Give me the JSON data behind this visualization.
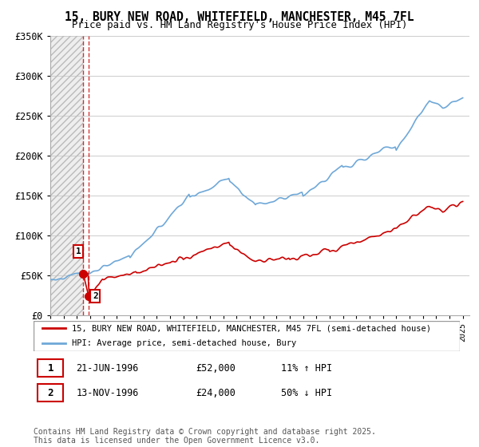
{
  "title": "15, BURY NEW ROAD, WHITEFIELD, MANCHESTER, M45 7FL",
  "subtitle": "Price paid vs. HM Land Registry's House Price Index (HPI)",
  "legend_entry1": "15, BURY NEW ROAD, WHITEFIELD, MANCHESTER, M45 7FL (semi-detached house)",
  "legend_entry2": "HPI: Average price, semi-detached house, Bury",
  "transaction1_label": "1",
  "transaction1_date": "21-JUN-1996",
  "transaction1_price": "£52,000",
  "transaction1_hpi": "11% ↑ HPI",
  "transaction2_label": "2",
  "transaction2_date": "13-NOV-1996",
  "transaction2_price": "£24,000",
  "transaction2_hpi": "50% ↓ HPI",
  "footnote": "Contains HM Land Registry data © Crown copyright and database right 2025.\nThis data is licensed under the Open Government Licence v3.0.",
  "hpi_color": "#6fa8d8",
  "price_color": "#cc0000",
  "ylim": [
    0,
    350000
  ],
  "yticks": [
    0,
    50000,
    100000,
    150000,
    200000,
    250000,
    300000,
    350000
  ],
  "xmin": 1994.0,
  "xmax": 2025.5,
  "hatch_region_x_start": 1994.0,
  "hatch_region_x_end": 1996.47,
  "transaction1_x": 1996.47,
  "transaction1_y": 52000,
  "transaction2_x": 1996.88,
  "transaction2_y": 24000,
  "hpi_years": [
    1994.0,
    1994.08,
    1994.17,
    1994.25,
    1994.33,
    1994.42,
    1994.5,
    1994.58,
    1994.67,
    1994.75,
    1994.83,
    1994.92,
    1995.0,
    1995.08,
    1995.17,
    1995.25,
    1995.33,
    1995.42,
    1995.5,
    1995.58,
    1995.67,
    1995.75,
    1995.83,
    1995.92,
    1996.0,
    1996.08,
    1996.17,
    1996.25,
    1996.33,
    1996.42,
    1996.5,
    1996.58,
    1996.67,
    1996.75,
    1996.83,
    1996.92,
    1997.0,
    1997.08,
    1997.17,
    1997.25,
    1997.33,
    1997.42,
    1997.5,
    1997.58,
    1997.67,
    1997.75,
    1997.83,
    1997.92,
    1998.0,
    1998.08,
    1998.17,
    1998.25,
    1998.33,
    1998.42,
    1998.5,
    1998.58,
    1998.67,
    1998.75,
    1998.83,
    1998.92,
    1999.0,
    1999.08,
    1999.17,
    1999.25,
    1999.33,
    1999.42,
    1999.5,
    1999.58,
    1999.67,
    1999.75,
    1999.83,
    1999.92,
    2000.0,
    2000.08,
    2000.17,
    2000.25,
    2000.33,
    2000.42,
    2000.5,
    2000.58,
    2000.67,
    2000.75,
    2000.83,
    2000.92,
    2001.0,
    2001.08,
    2001.17,
    2001.25,
    2001.33,
    2001.42,
    2001.5,
    2001.58,
    2001.67,
    2001.75,
    2001.83,
    2001.92,
    2002.0,
    2002.08,
    2002.17,
    2002.25,
    2002.33,
    2002.42,
    2002.5,
    2002.58,
    2002.67,
    2002.75,
    2002.83,
    2002.92,
    2003.0,
    2003.08,
    2003.17,
    2003.25,
    2003.33,
    2003.42,
    2003.5,
    2003.58,
    2003.67,
    2003.75,
    2003.83,
    2003.92,
    2004.0,
    2004.08,
    2004.17,
    2004.25,
    2004.33,
    2004.42,
    2004.5,
    2004.58,
    2004.67,
    2004.75,
    2004.83,
    2004.92,
    2005.0,
    2005.08,
    2005.17,
    2005.25,
    2005.33,
    2005.42,
    2005.5,
    2005.58,
    2005.67,
    2005.75,
    2005.83,
    2005.92,
    2006.0,
    2006.08,
    2006.17,
    2006.25,
    2006.33,
    2006.42,
    2006.5,
    2006.58,
    2006.67,
    2006.75,
    2006.83,
    2006.92,
    2007.0,
    2007.08,
    2007.17,
    2007.25,
    2007.33,
    2007.42,
    2007.5,
    2007.58,
    2007.67,
    2007.75,
    2007.83,
    2007.92,
    2008.0,
    2008.08,
    2008.17,
    2008.25,
    2008.33,
    2008.42,
    2008.5,
    2008.58,
    2008.67,
    2008.75,
    2008.83,
    2008.92,
    2009.0,
    2009.08,
    2009.17,
    2009.25,
    2009.33,
    2009.42,
    2009.5,
    2009.58,
    2009.67,
    2009.75,
    2009.83,
    2009.92,
    2010.0,
    2010.08,
    2010.17,
    2010.25,
    2010.33,
    2010.42,
    2010.5,
    2010.58,
    2010.67,
    2010.75,
    2010.83,
    2010.92,
    2011.0,
    2011.08,
    2011.17,
    2011.25,
    2011.33,
    2011.42,
    2011.5,
    2011.58,
    2011.67,
    2011.75,
    2011.83,
    2011.92,
    2012.0,
    2012.08,
    2012.17,
    2012.25,
    2012.33,
    2012.42,
    2012.5,
    2012.58,
    2012.67,
    2012.75,
    2012.83,
    2012.92,
    2013.0,
    2013.08,
    2013.17,
    2013.25,
    2013.33,
    2013.42,
    2013.5,
    2013.58,
    2013.67,
    2013.75,
    2013.83,
    2013.92,
    2014.0,
    2014.08,
    2014.17,
    2014.25,
    2014.33,
    2014.42,
    2014.5,
    2014.58,
    2014.67,
    2014.75,
    2014.83,
    2014.92,
    2015.0,
    2015.08,
    2015.17,
    2015.25,
    2015.33,
    2015.42,
    2015.5,
    2015.58,
    2015.67,
    2015.75,
    2015.83,
    2015.92,
    2016.0,
    2016.08,
    2016.17,
    2016.25,
    2016.33,
    2016.42,
    2016.5,
    2016.58,
    2016.67,
    2016.75,
    2016.83,
    2016.92,
    2017.0,
    2017.08,
    2017.17,
    2017.25,
    2017.33,
    2017.42,
    2017.5,
    2017.58,
    2017.67,
    2017.75,
    2017.83,
    2017.92,
    2018.0,
    2018.08,
    2018.17,
    2018.25,
    2018.33,
    2018.42,
    2018.5,
    2018.58,
    2018.67,
    2018.75,
    2018.83,
    2018.92,
    2019.0,
    2019.08,
    2019.17,
    2019.25,
    2019.33,
    2019.42,
    2019.5,
    2019.58,
    2019.67,
    2019.75,
    2019.83,
    2019.92,
    2020.0,
    2020.08,
    2020.17,
    2020.25,
    2020.33,
    2020.42,
    2020.5,
    2020.58,
    2020.67,
    2020.75,
    2020.83,
    2020.92,
    2021.0,
    2021.08,
    2021.17,
    2021.25,
    2021.33,
    2021.42,
    2021.5,
    2021.58,
    2021.67,
    2021.75,
    2021.83,
    2021.92,
    2022.0,
    2022.08,
    2022.17,
    2022.25,
    2022.33,
    2022.42,
    2022.5,
    2022.58,
    2022.67,
    2022.75,
    2022.83,
    2022.92,
    2023.0,
    2023.08,
    2023.17,
    2023.25,
    2023.33,
    2023.42,
    2023.5,
    2023.58,
    2023.67,
    2023.75,
    2023.83,
    2023.92,
    2024.0,
    2024.08,
    2024.17,
    2024.25,
    2024.33,
    2024.42,
    2024.5,
    2024.58,
    2024.67,
    2024.75,
    2024.83,
    2024.92,
    2025.0
  ],
  "price_years_raw": [
    1996.47,
    1996.88
  ],
  "price_vals_raw": [
    52000,
    24000
  ]
}
